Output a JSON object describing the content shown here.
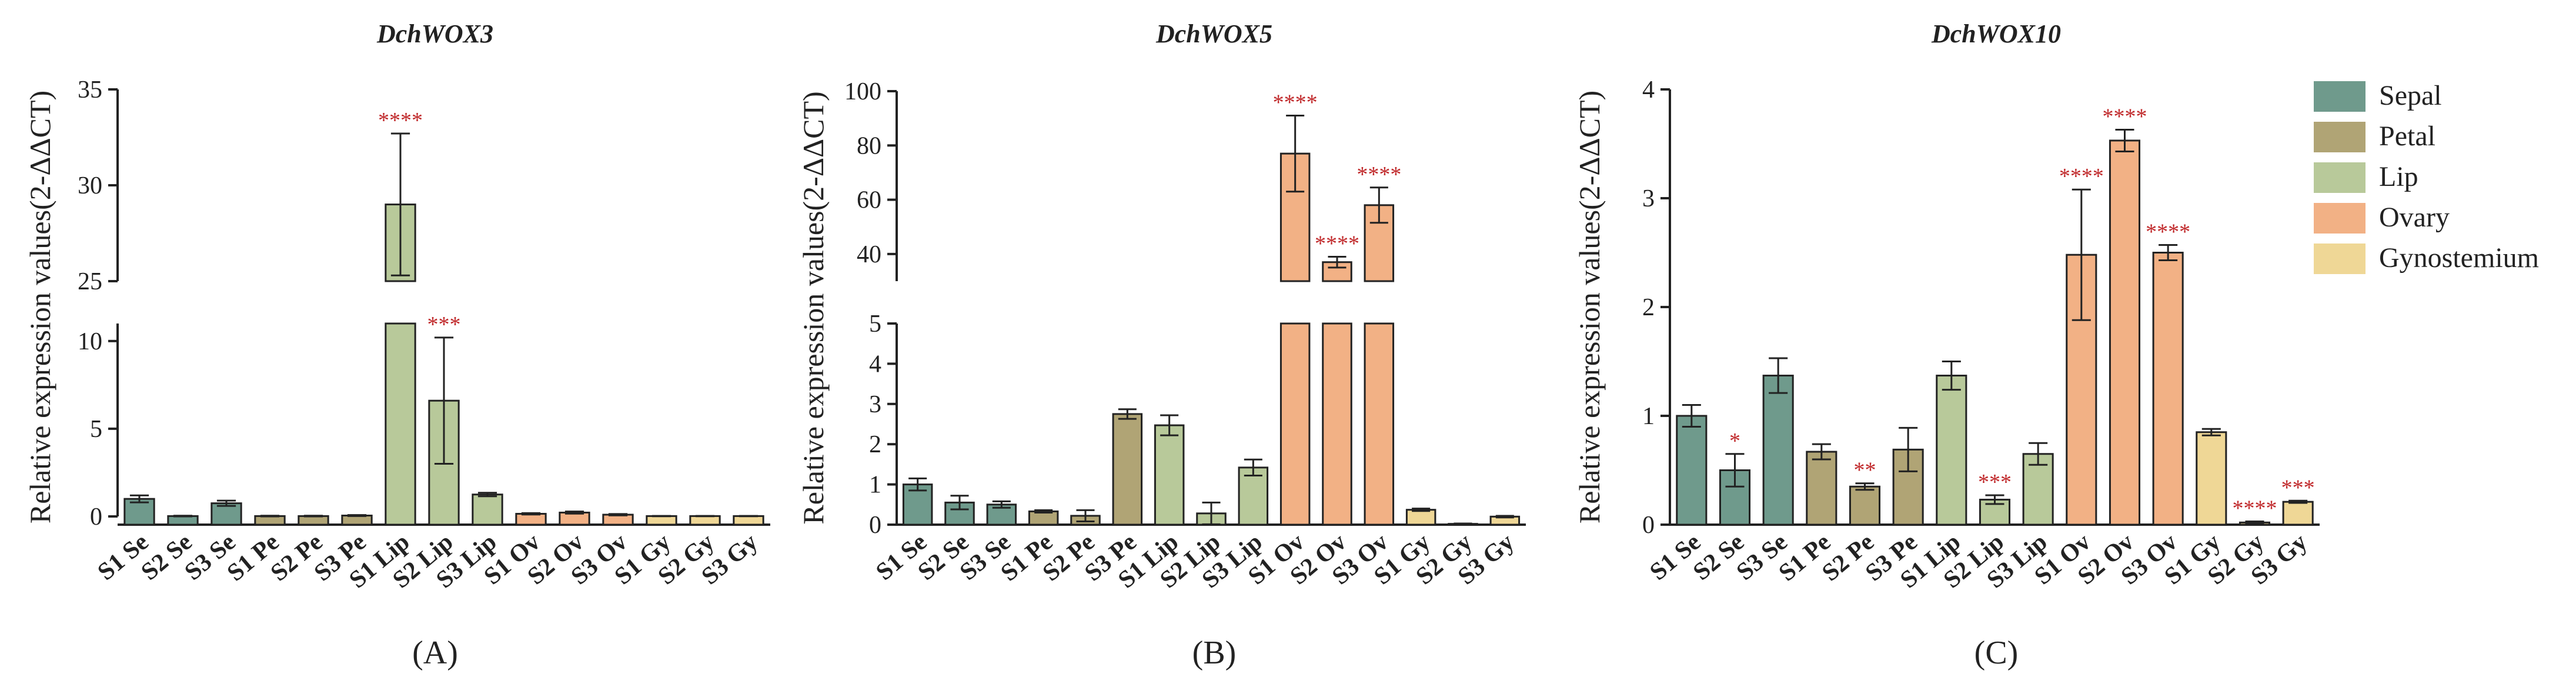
{
  "colors": {
    "Sepal": "#6f9a8c",
    "Petal": "#b0a475",
    "Lip": "#b8c99a",
    "Ovary": "#f2b185",
    "Gynostemium": "#efd796",
    "significance": "#c0282a",
    "axis": "#222222"
  },
  "legend": {
    "items": [
      {
        "label": "Sepal",
        "tissue": "Sepal"
      },
      {
        "label": "Petal",
        "tissue": "Petal"
      },
      {
        "label": "Lip",
        "tissue": "Lip"
      },
      {
        "label": "Ovary",
        "tissue": "Ovary"
      },
      {
        "label": "Gynostemium",
        "tissue": "Gynostemium"
      }
    ]
  },
  "chart_data": [
    {
      "type": "bar",
      "title": "DchWOX3",
      "panel_label": "(A)",
      "ylabel": "Relative expression values(2-ΔΔCT)",
      "broken_axis": true,
      "segments": [
        {
          "range": [
            0,
            11
          ],
          "ticks": [
            0,
            5,
            10
          ]
        },
        {
          "range": [
            25,
            35
          ],
          "ticks": [
            25,
            30,
            35
          ]
        }
      ],
      "categories": [
        "S1 Se",
        "S2 Se",
        "S3 Se",
        "S1 Pe",
        "S2 Pe",
        "S3 Pe",
        "S1 Lip",
        "S2 Lip",
        "S3 Lip",
        "S1 Ov",
        "S2 Ov",
        "S3 Ov",
        "S1 Gy",
        "S2 Gy",
        "S3 Gy"
      ],
      "tissues": [
        "Sepal",
        "Sepal",
        "Sepal",
        "Petal",
        "Petal",
        "Petal",
        "Lip",
        "Lip",
        "Lip",
        "Ovary",
        "Ovary",
        "Ovary",
        "Gynostemium",
        "Gynostemium",
        "Gynostemium"
      ],
      "values": [
        1.0,
        0.02,
        0.75,
        0.02,
        0.02,
        0.05,
        29.0,
        6.6,
        1.25,
        0.15,
        0.22,
        0.1,
        0.02,
        0.02,
        0.02
      ],
      "errors": [
        0.2,
        0.02,
        0.15,
        0.02,
        0.02,
        0.03,
        3.7,
        3.6,
        0.1,
        0.04,
        0.06,
        0.04,
        0.01,
        0.01,
        0.01
      ],
      "significance": [
        "",
        "",
        "",
        "",
        "",
        "",
        "****",
        "***",
        "",
        "",
        "",
        "",
        "",
        "",
        ""
      ]
    },
    {
      "type": "bar",
      "title": "DchWOX5",
      "panel_label": "(B)",
      "ylabel": "Relative expression values(2-ΔΔCT)",
      "broken_axis": true,
      "segments": [
        {
          "range": [
            0,
            5
          ],
          "ticks": [
            0,
            1,
            2,
            3,
            4,
            5
          ]
        },
        {
          "range": [
            30,
            100
          ],
          "ticks": [
            40,
            60,
            80,
            100
          ]
        }
      ],
      "categories": [
        "S1 Se",
        "S2 Se",
        "S3 Se",
        "S1 Pe",
        "S2 Pe",
        "S3 Pe",
        "S1 Lip",
        "S2 Lip",
        "S3 Lip",
        "S1 Ov",
        "S2 Ov",
        "S3 Ov",
        "S1 Gy",
        "S2 Gy",
        "S3 Gy"
      ],
      "tissues": [
        "Sepal",
        "Sepal",
        "Sepal",
        "Petal",
        "Petal",
        "Petal",
        "Lip",
        "Lip",
        "Lip",
        "Ovary",
        "Ovary",
        "Ovary",
        "Gynostemium",
        "Gynostemium",
        "Gynostemium"
      ],
      "values": [
        1.0,
        0.55,
        0.5,
        0.33,
        0.22,
        2.75,
        2.47,
        0.28,
        1.42,
        77.0,
        37.0,
        58.0,
        0.37,
        0.02,
        0.2
      ],
      "errors": [
        0.15,
        0.17,
        0.08,
        0.03,
        0.14,
        0.12,
        0.25,
        0.27,
        0.2,
        14.0,
        2.0,
        6.5,
        0.03,
        0.01,
        0.02
      ],
      "significance": [
        "",
        "",
        "",
        "",
        "",
        "",
        "",
        "",
        "",
        "****",
        "****",
        "****",
        "",
        "",
        ""
      ]
    },
    {
      "type": "bar",
      "title": "DchWOX10",
      "panel_label": "(C)",
      "ylabel": "Relative expression values(2-ΔΔCT)",
      "broken_axis": false,
      "segments": [
        {
          "range": [
            0,
            4
          ],
          "ticks": [
            0,
            1,
            2,
            3,
            4
          ]
        }
      ],
      "categories": [
        "S1 Se",
        "S2 Se",
        "S3 Se",
        "S1 Pe",
        "S2 Pe",
        "S3 Pe",
        "S1 Lip",
        "S2 Lip",
        "S3 Lip",
        "S1 Ov",
        "S2 Ov",
        "S3 Ov",
        "S1 Gy",
        "S2 Gy",
        "S3 Gy"
      ],
      "tissues": [
        "Sepal",
        "Sepal",
        "Sepal",
        "Petal",
        "Petal",
        "Petal",
        "Lip",
        "Lip",
        "Lip",
        "Ovary",
        "Ovary",
        "Ovary",
        "Gynostemium",
        "Gynostemium",
        "Gynostemium"
      ],
      "values": [
        1.0,
        0.5,
        1.37,
        0.67,
        0.35,
        0.69,
        1.37,
        0.23,
        0.65,
        2.48,
        3.53,
        2.5,
        0.85,
        0.02,
        0.21
      ],
      "errors": [
        0.1,
        0.15,
        0.16,
        0.07,
        0.03,
        0.2,
        0.13,
        0.04,
        0.1,
        0.6,
        0.1,
        0.07,
        0.03,
        0.01,
        0.01
      ],
      "significance": [
        "",
        "*",
        "",
        "",
        "**",
        "",
        "",
        "***",
        "",
        "****",
        "****",
        "****",
        "",
        "****",
        "***"
      ]
    }
  ]
}
